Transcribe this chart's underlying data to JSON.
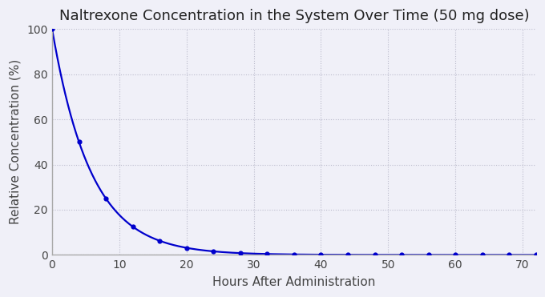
{
  "title": "Naltrexone Concentration in the System Over Time (50 mg dose)",
  "xlabel": "Hours After Administration",
  "ylabel": "Relative Concentration (%)",
  "line_color": "#0000CC",
  "marker_color": "#0000CC",
  "background_color": "#F0F0F8",
  "axes_background_color": "#F0F0F8",
  "grid_color": "#BBBBCC",
  "spine_color": "#AAAAAA",
  "x_points": [
    0,
    4,
    8,
    12,
    16,
    20,
    24,
    28,
    32,
    36,
    40,
    44,
    48,
    52,
    56,
    60,
    64,
    68,
    72
  ],
  "half_life_hours": 4.0,
  "xlim": [
    0,
    72
  ],
  "ylim": [
    0,
    100
  ],
  "xticks": [
    0,
    10,
    20,
    30,
    40,
    50,
    60,
    70
  ],
  "yticks": [
    0,
    20,
    40,
    60,
    80,
    100
  ],
  "title_fontsize": 13,
  "label_fontsize": 11,
  "tick_fontsize": 10,
  "line_width": 1.6,
  "marker_size": 4.5,
  "figsize": [
    6.8,
    3.71
  ],
  "dpi": 100
}
